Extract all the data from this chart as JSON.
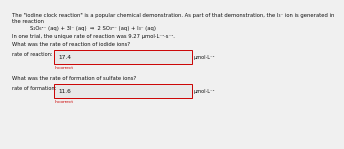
{
  "line1": "The \"iodine clock reaction\" is a popular chemical demonstration. As part of that demonstration, the I₃⁻ ion is generated in",
  "line2": "the reaction",
  "reaction": "S₂O₆²⁻ (aq) + 3I⁻ (aq)  ⇒  2 SO₃²⁻ (aq) + I₃⁻ (aq)",
  "trial": "In one trial, the unique rate of reaction was 9.27 μmol·L⁻¹·s⁻¹.",
  "q1": "What was the rate of reaction of iodide ions?",
  "q1_label": "rate of reaction:",
  "q1_value": "17.4",
  "q1_unit": "μmol·L⁻¹",
  "q1_incorrect": "Incorrect",
  "q2": "What was the rate of formation of sulfate ions?",
  "q2_label": "rate of formation:",
  "q2_value": "11.6",
  "q2_unit": "μmol·L⁻¹",
  "q2_incorrect": "Incorrect",
  "bg_color": "#f0f0f0",
  "box_bg": "#e8e8e8",
  "box_border": "#cc0000",
  "text_color": "#111111",
  "incorrect_color": "#cc0000",
  "fs_body": 3.8,
  "fs_value": 4.2,
  "fs_label": 3.6,
  "fs_incorrect": 3.2
}
